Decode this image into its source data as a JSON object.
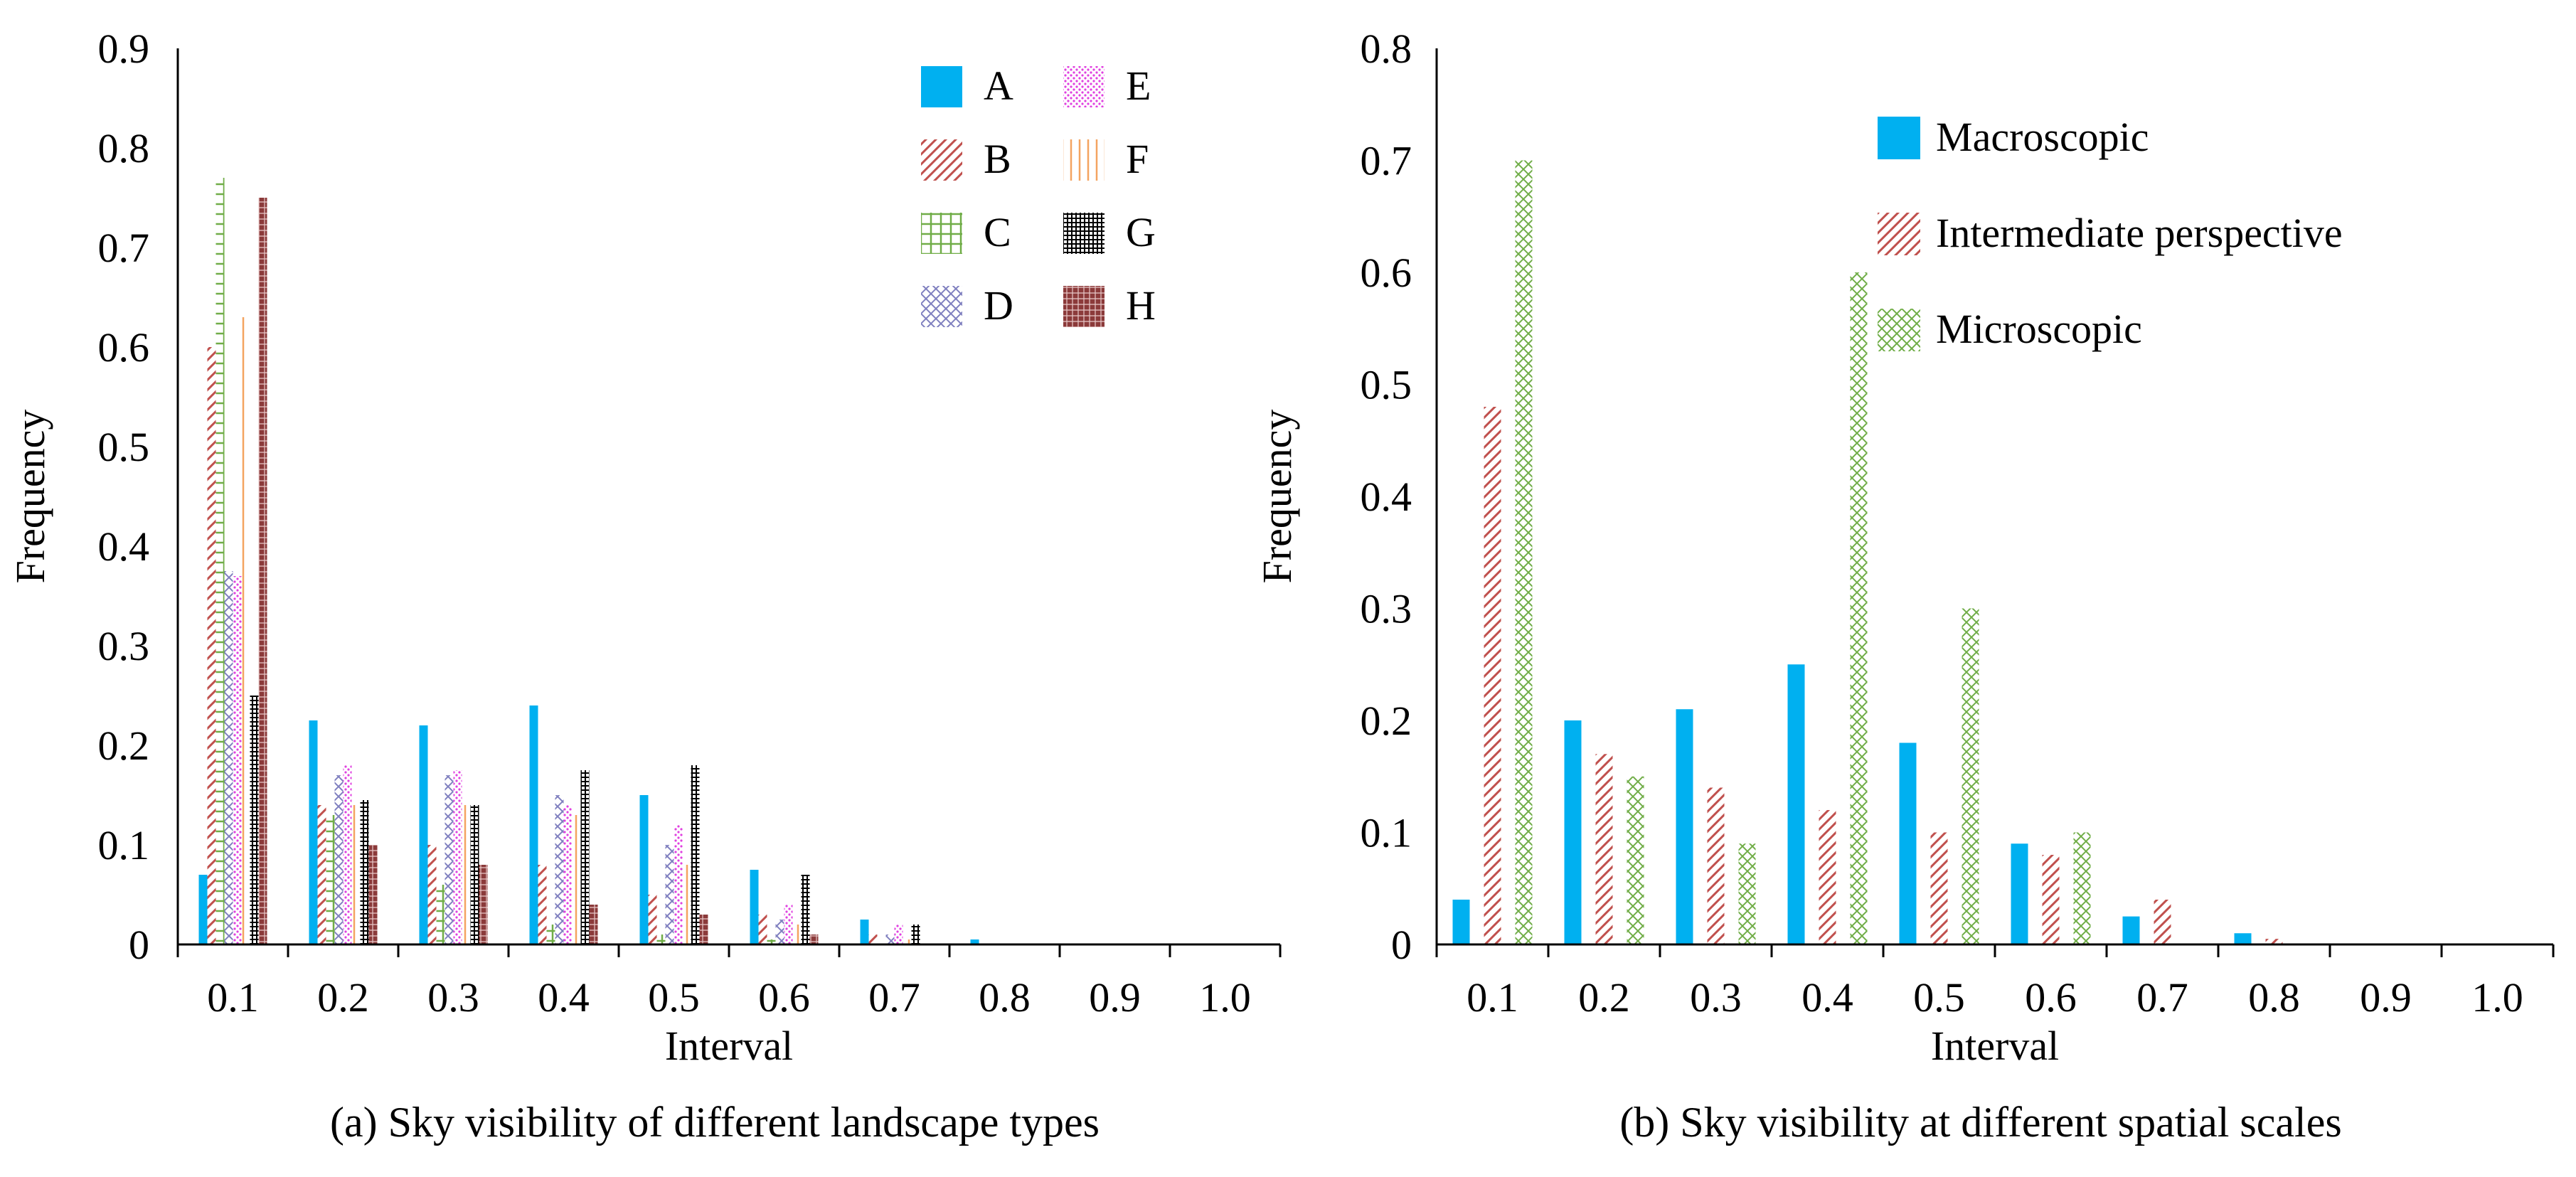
{
  "chart_data": [
    {
      "type": "bar",
      "title": "",
      "caption": "(a) Sky visibility of different landscape types",
      "xlabel": "Interval",
      "ylabel": "Frequency",
      "categories": [
        "0.1",
        "0.2",
        "0.3",
        "0.4",
        "0.5",
        "0.6",
        "0.7",
        "0.8",
        "0.9",
        "1.0"
      ],
      "ylim": [
        0,
        0.9
      ],
      "yticks": [
        "0",
        "0.1",
        "0.2",
        "0.3",
        "0.4",
        "0.5",
        "0.6",
        "0.7",
        "0.8",
        "0.9"
      ],
      "legend_position": "top-right",
      "series": [
        {
          "name": "A",
          "pattern": "solid",
          "color": "#00b0f0",
          "values": [
            0.07,
            0.225,
            0.22,
            0.24,
            0.15,
            0.075,
            0.025,
            0.005,
            0,
            0
          ]
        },
        {
          "name": "B",
          "pattern": "diag",
          "color": "#c0504d",
          "values": [
            0.6,
            0.14,
            0.1,
            0.08,
            0.05,
            0.03,
            0.01,
            0,
            0,
            0
          ]
        },
        {
          "name": "C",
          "pattern": "grid",
          "color": "#70ad47",
          "values": [
            0.77,
            0.13,
            0.06,
            0.02,
            0.01,
            0.005,
            0,
            0,
            0,
            0
          ]
        },
        {
          "name": "D",
          "pattern": "cross",
          "color": "#7f7fbf",
          "values": [
            0.375,
            0.17,
            0.17,
            0.15,
            0.1,
            0.025,
            0.01,
            0,
            0,
            0
          ]
        },
        {
          "name": "E",
          "pattern": "dots",
          "color": "#e040e0",
          "values": [
            0.37,
            0.18,
            0.175,
            0.14,
            0.12,
            0.04,
            0.02,
            0,
            0,
            0
          ]
        },
        {
          "name": "F",
          "pattern": "vlines",
          "color": "#f4a460",
          "values": [
            0.63,
            0.14,
            0.14,
            0.13,
            0.08,
            0.02,
            0.005,
            0,
            0,
            0
          ]
        },
        {
          "name": "G",
          "pattern": "densegrid",
          "color": "#000000",
          "values": [
            0.25,
            0.145,
            0.14,
            0.175,
            0.18,
            0.07,
            0.02,
            0,
            0,
            0
          ]
        },
        {
          "name": "H",
          "pattern": "brick",
          "color": "#8b3a3a",
          "values": [
            0.75,
            0.1,
            0.08,
            0.04,
            0.03,
            0.01,
            0,
            0,
            0,
            0
          ]
        }
      ]
    },
    {
      "type": "bar",
      "title": "",
      "caption": "(b) Sky visibility at different spatial scales",
      "xlabel": "Interval",
      "ylabel": "Frequency",
      "categories": [
        "0.1",
        "0.2",
        "0.3",
        "0.4",
        "0.5",
        "0.6",
        "0.7",
        "0.8",
        "0.9",
        "1.0"
      ],
      "ylim": [
        0,
        0.8
      ],
      "yticks": [
        "0",
        "0.1",
        "0.2",
        "0.3",
        "0.4",
        "0.5",
        "0.6",
        "0.7",
        "0.8"
      ],
      "legend_position": "top-right",
      "series": [
        {
          "name": "Macroscopic",
          "pattern": "solid",
          "color": "#00b0f0",
          "values": [
            0.04,
            0.2,
            0.21,
            0.25,
            0.18,
            0.09,
            0.025,
            0.01,
            0,
            0
          ]
        },
        {
          "name": "Intermediate perspective",
          "pattern": "diag",
          "color": "#c0504d",
          "values": [
            0.48,
            0.17,
            0.14,
            0.12,
            0.1,
            0.08,
            0.04,
            0.005,
            0,
            0
          ]
        },
        {
          "name": "Microscopic",
          "pattern": "cross",
          "color": "#70ad47",
          "values": [
            0.7,
            0.15,
            0.09,
            0.6,
            0.3,
            0.1,
            0,
            0,
            0,
            0
          ]
        }
      ]
    }
  ]
}
